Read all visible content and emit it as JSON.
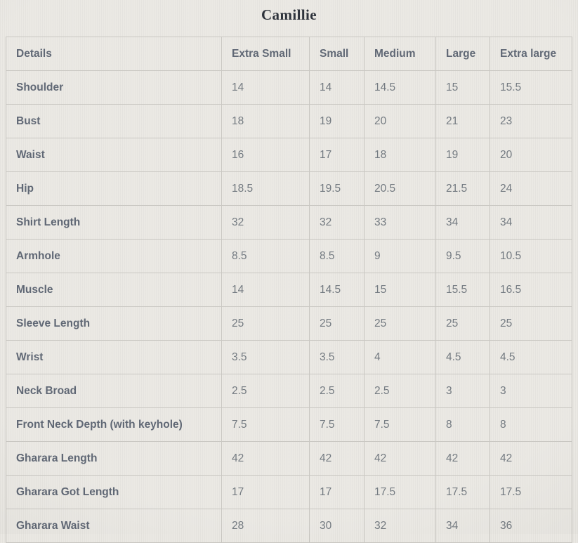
{
  "title": "Camillie",
  "table": {
    "columns": [
      "Details",
      "Extra Small",
      "Small",
      "Medium",
      "Large",
      "Extra large"
    ],
    "rows": [
      {
        "label": "Shoulder",
        "values": [
          "14",
          "14",
          "14.5",
          "15",
          "15.5"
        ]
      },
      {
        "label": "Bust",
        "values": [
          "18",
          "19",
          "20",
          "21",
          "23"
        ]
      },
      {
        "label": "Waist",
        "values": [
          "16",
          "17",
          "18",
          "19",
          "20"
        ]
      },
      {
        "label": "Hip",
        "values": [
          "18.5",
          "19.5",
          "20.5",
          "21.5",
          "24"
        ]
      },
      {
        "label": "Shirt Length",
        "values": [
          "32",
          "32",
          "33",
          "34",
          "34"
        ]
      },
      {
        "label": "Armhole",
        "values": [
          "8.5",
          "8.5",
          "9",
          "9.5",
          "10.5"
        ]
      },
      {
        "label": "Muscle",
        "values": [
          "14",
          "14.5",
          "15",
          "15.5",
          "16.5"
        ]
      },
      {
        "label": "Sleeve Length",
        "values": [
          "25",
          "25",
          "25",
          "25",
          "25"
        ]
      },
      {
        "label": "Wrist",
        "values": [
          "3.5",
          "3.5",
          "4",
          "4.5",
          "4.5"
        ]
      },
      {
        "label": "Neck Broad",
        "values": [
          "2.5",
          "2.5",
          "2.5",
          "3",
          "3"
        ]
      },
      {
        "label": "Front Neck Depth (with keyhole)",
        "values": [
          "7.5",
          "7.5",
          "7.5",
          "8",
          "8"
        ]
      },
      {
        "label": "Gharara Length",
        "values": [
          "42",
          "42",
          "42",
          "42",
          "42"
        ]
      },
      {
        "label": "Gharara Got Length",
        "values": [
          "17",
          "17",
          "17.5",
          "17.5",
          "17.5"
        ]
      },
      {
        "label": "Gharara Waist",
        "values": [
          "28",
          "30",
          "32",
          "34",
          "36"
        ]
      }
    ]
  },
  "colors": {
    "background": "#e9e7e2",
    "border": "#c7c5c0",
    "label_text": "#58606e",
    "value_text": "#6c737a",
    "title_text": "#232831"
  }
}
